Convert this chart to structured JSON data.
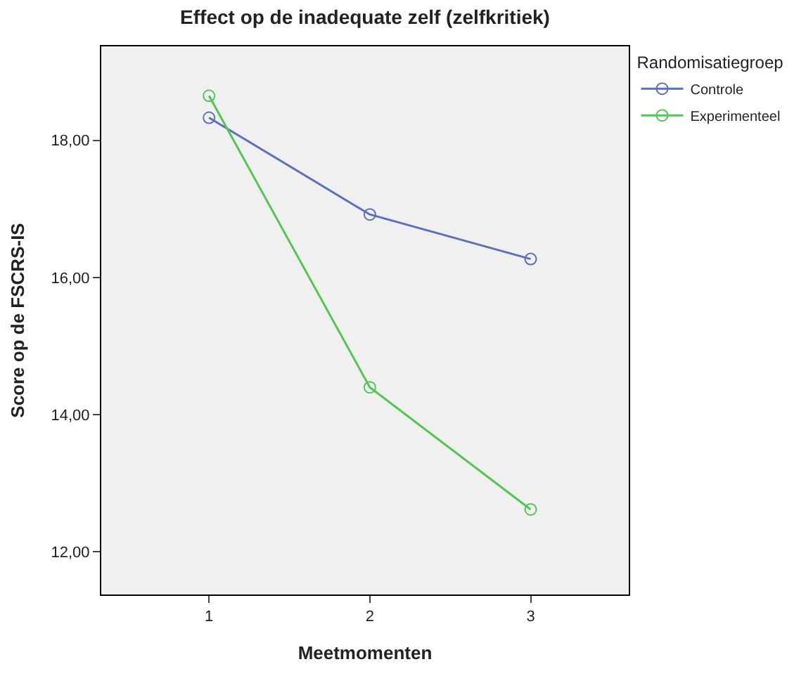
{
  "chart_data": {
    "type": "line",
    "title": "Effect op de inadequate zelf (zelfkritiek)",
    "xlabel": "Meetmomenten",
    "ylabel": "Score op de FSCRS-IS",
    "legend_title": "Randomisatiegroep",
    "x": [
      1,
      2,
      3
    ],
    "series": [
      {
        "name": "Controle",
        "color": "#5a6fc0",
        "values": [
          18.33,
          16.92,
          16.27
        ]
      },
      {
        "name": "Experimenteel",
        "color": "#50c850",
        "values": [
          18.65,
          14.4,
          12.62
        ]
      }
    ],
    "xlim": [
      0.33,
      3.61
    ],
    "xticks": [
      1,
      2,
      3
    ],
    "ylim": [
      11.38,
      19.37
    ],
    "yticks": [
      {
        "value": 12,
        "label": "12,00"
      },
      {
        "value": 14,
        "label": "14,00"
      },
      {
        "value": 16,
        "label": "16,00"
      },
      {
        "value": 18,
        "label": "18,00"
      }
    ],
    "grid": false,
    "legend": "top right",
    "marker": "circle",
    "line_style": "solid"
  }
}
